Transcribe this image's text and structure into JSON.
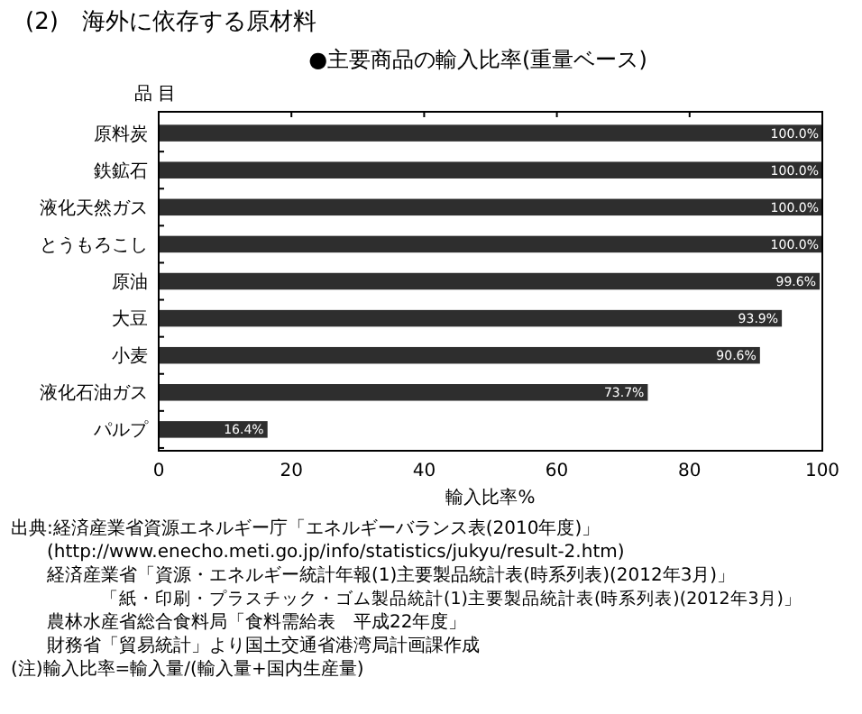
{
  "chart_data": {
    "type": "bar",
    "orientation": "horizontal",
    "title": "(2)　海外に依存する原材料",
    "subtitle": "●主要商品の輸入比率(重量ベース)",
    "ylabel": "品 目",
    "xlabel": "輸入比率%",
    "categories": [
      "原料炭",
      "鉄鉱石",
      "液化天然ガス",
      "とうもろこし",
      "原油",
      "大豆",
      "小麦",
      "液化石油ガス",
      "パルプ"
    ],
    "values": [
      100,
      100,
      100,
      100,
      99.6,
      93.9,
      90.6,
      73.7,
      16.4
    ],
    "value_labels": [
      "100.0%",
      "100.0%",
      "100.0%",
      "100.0%",
      "99.6%",
      "93.9%",
      "90.6%",
      "73.7%",
      "16.4%"
    ],
    "color": "#2e2e2e",
    "xlim": [
      0,
      100
    ],
    "xticks": [
      0,
      20,
      40,
      60,
      80,
      100
    ],
    "annotations": [
      "出典:経済産業省資源エネルギー庁「エネルギーバランス表(2010年度)」",
      "(http://www.enecho.meti.go.jp/info/statistics/jukyu/result-2.htm)",
      "経済産業省「資源・エネルギー統計年報(1)主要製品統計表(時系列表)(2012年3月)」",
      "「紙・印刷・プラスチック・ゴム製品統計(1)主要製品統計表(時系列表)(2012年3月)」",
      "農林水産省総合食料局「食料需給表　平成22年度」",
      "財務省「貿易統計」より国土交通省港湾局計画課作成",
      "(注)輸入比率=輸入量/(輸入量+国内生産量)"
    ]
  }
}
